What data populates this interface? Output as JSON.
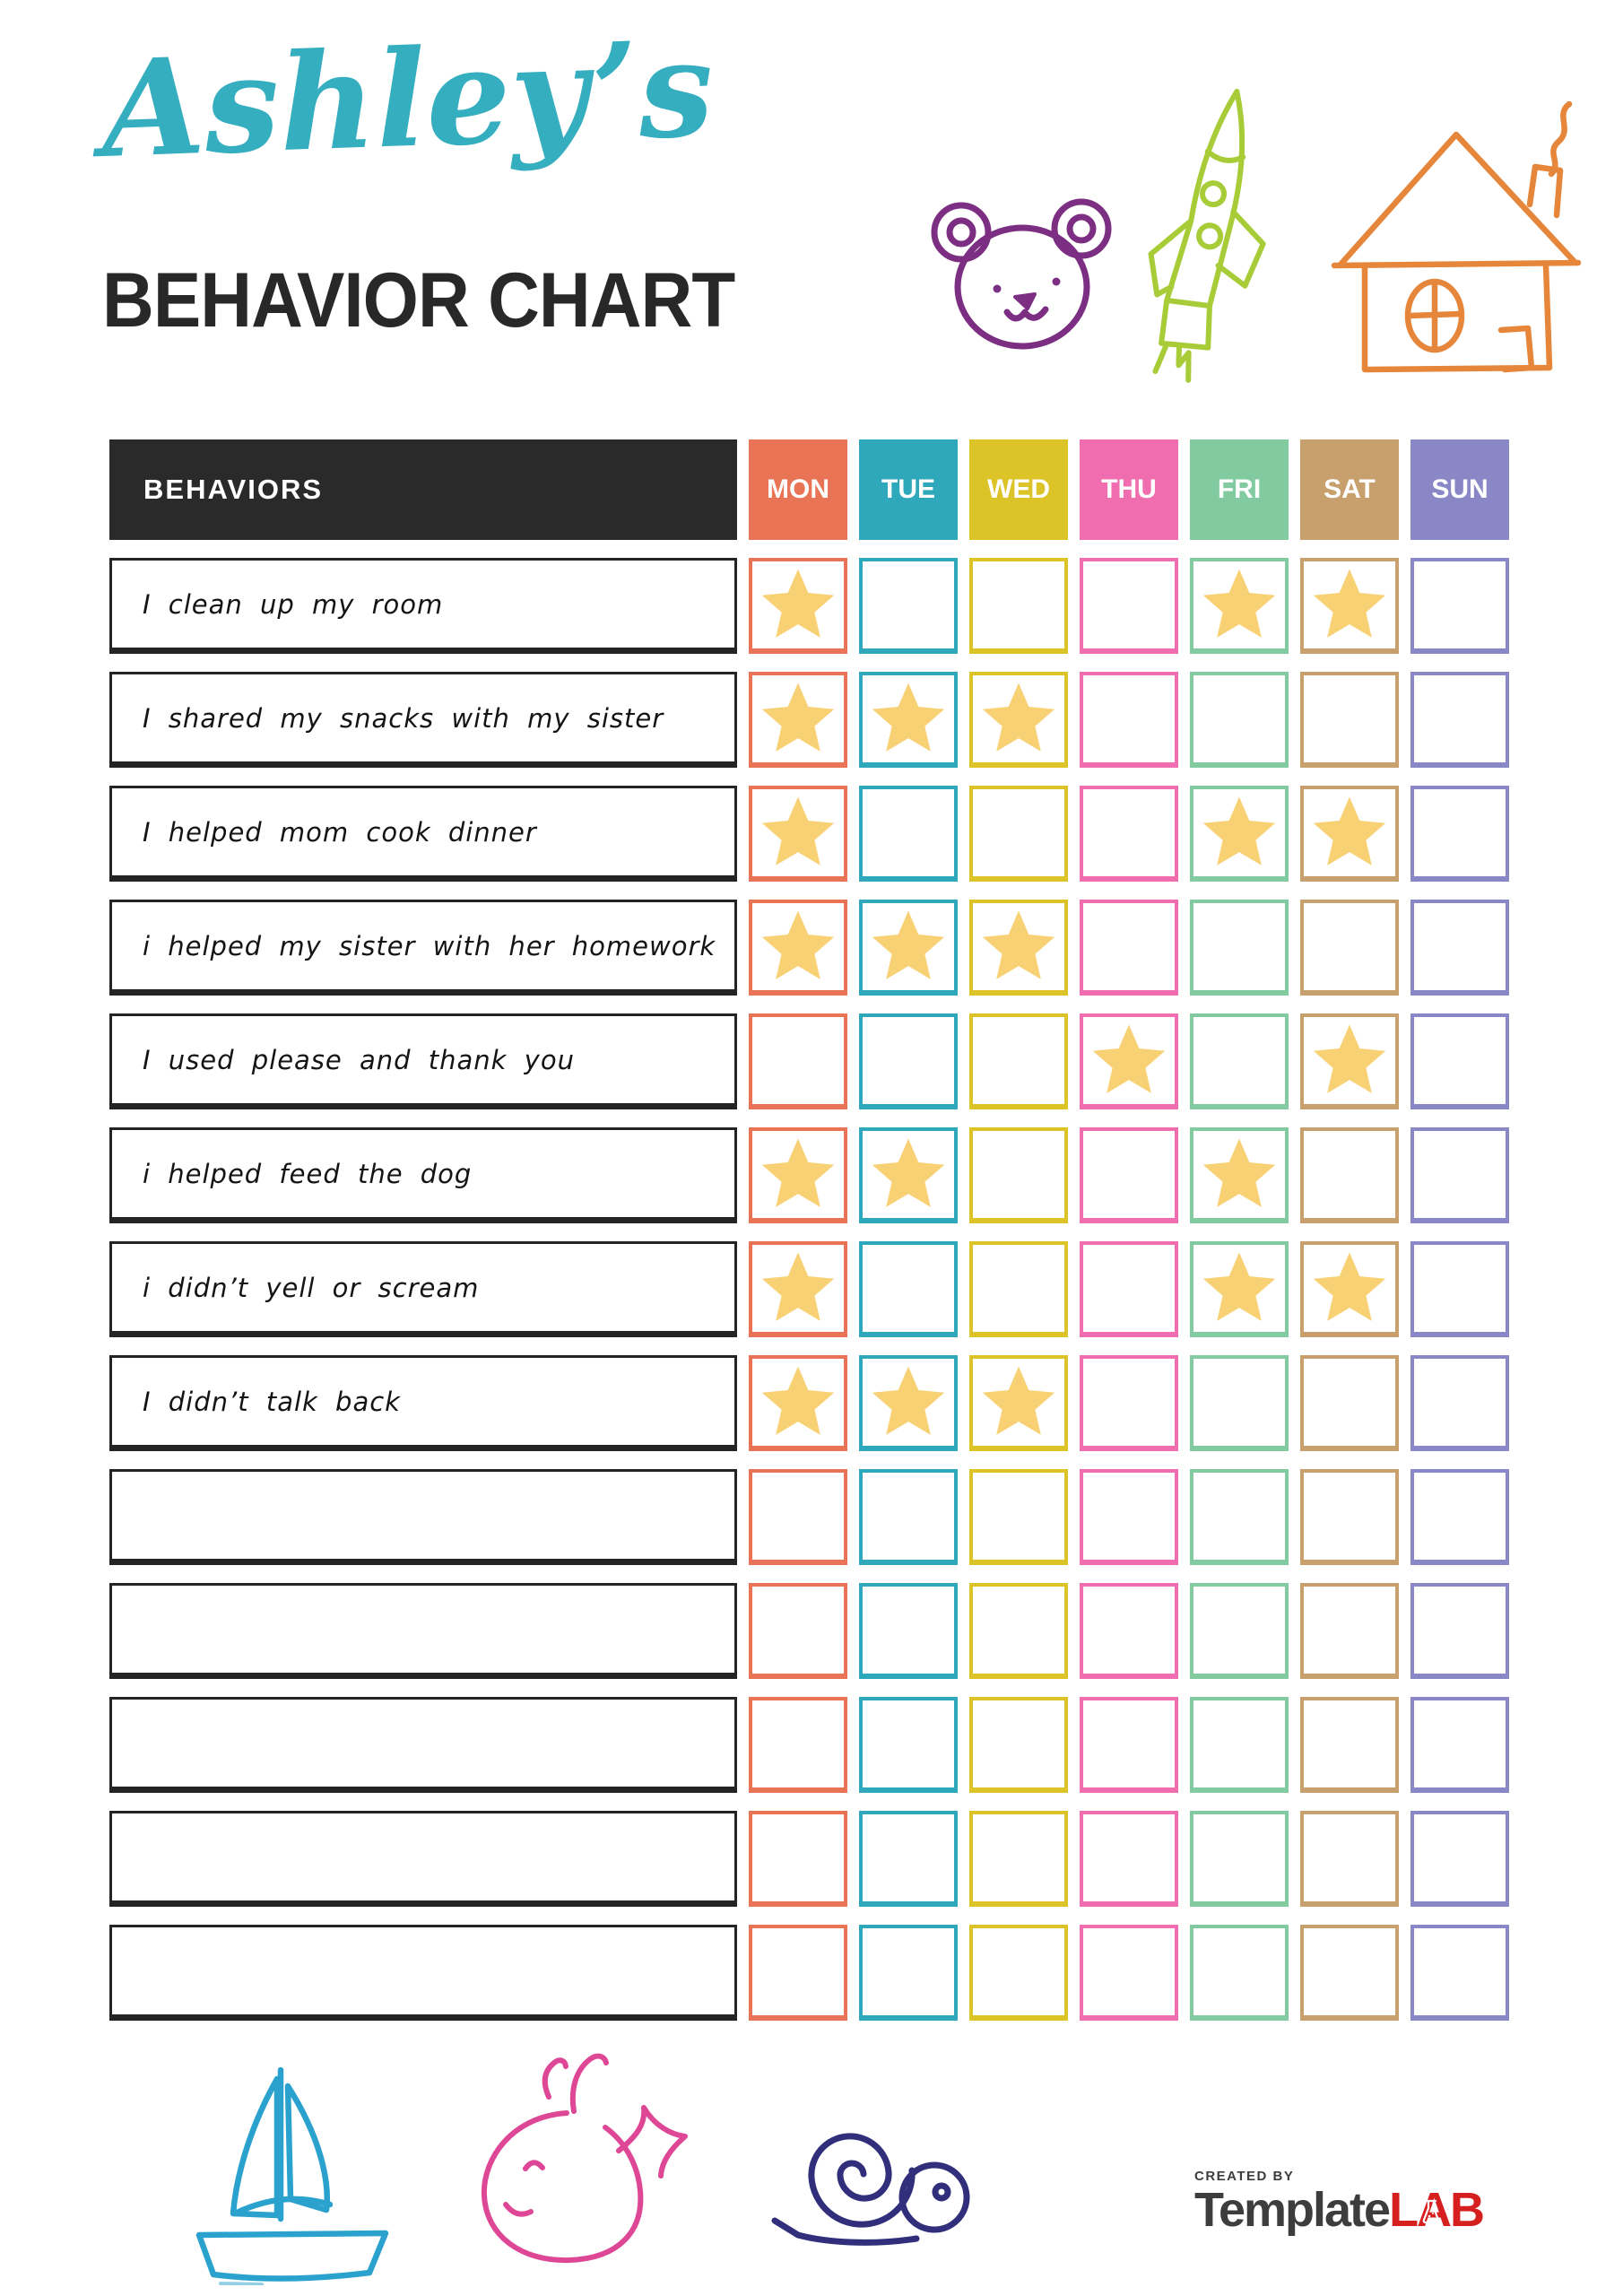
{
  "page": {
    "title_script": "Ashley’s",
    "title_main": "BEHAVIOR CHART",
    "title_script_color": "#35AEBF",
    "title_main_color": "#282828"
  },
  "table": {
    "behaviors_header": "BEHAVIORS",
    "header_bg": "#2A2A2A",
    "days": [
      {
        "label": "MON",
        "color": "#E97355"
      },
      {
        "label": "TUE",
        "color": "#2FA8BC"
      },
      {
        "label": "WED",
        "color": "#DCC327"
      },
      {
        "label": "THU",
        "color": "#F06EB0"
      },
      {
        "label": "FRI",
        "color": "#82CBA0"
      },
      {
        "label": "SAT",
        "color": "#C7A06D"
      },
      {
        "label": "SUN",
        "color": "#8987C6"
      }
    ],
    "star_color": "#F8D175",
    "star_glyph": "★",
    "rows": [
      {
        "behavior": "I clean up my room",
        "stars": [
          "MON",
          "FRI",
          "SAT"
        ]
      },
      {
        "behavior": "I shared my snacks with my sister",
        "stars": [
          "MON",
          "TUE",
          "WED"
        ]
      },
      {
        "behavior": "I helped mom cook dinner",
        "stars": [
          "MON",
          "FRI",
          "SAT"
        ]
      },
      {
        "behavior": "i helped my sister with her homework",
        "stars": [
          "MON",
          "TUE",
          "WED"
        ]
      },
      {
        "behavior": "I used please and thank you",
        "stars": [
          "THU",
          "SAT"
        ]
      },
      {
        "behavior": "i helped feed the dog",
        "stars": [
          "MON",
          "TUE",
          "FRI"
        ]
      },
      {
        "behavior": "i didn’t yell or scream",
        "stars": [
          "MON",
          "FRI",
          "SAT"
        ]
      },
      {
        "behavior": "I didn’t talk back",
        "stars": [
          "MON",
          "TUE",
          "WED"
        ]
      },
      {
        "behavior": "",
        "stars": []
      },
      {
        "behavior": "",
        "stars": []
      },
      {
        "behavior": "",
        "stars": []
      },
      {
        "behavior": "",
        "stars": []
      },
      {
        "behavior": "",
        "stars": []
      }
    ]
  },
  "decorations": {
    "bear_color": "#7B2E82",
    "rocket_color": "#A8CC38",
    "house_color": "#E5863B",
    "sailboat_color": "#2BA2CE",
    "whale_color": "#DE4795",
    "snail_color": "#312E7B"
  },
  "footer": {
    "created_by": "CREATED BY",
    "brand_main": "Template",
    "brand_lab": "LAB",
    "brand_main_color": "#3d3d3d",
    "brand_lab_color": "#D6201F"
  }
}
